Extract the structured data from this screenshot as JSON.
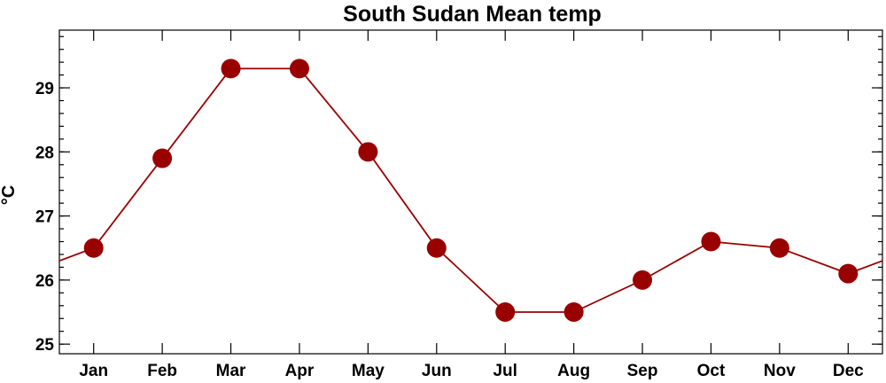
{
  "chart_data": {
    "type": "line",
    "title": "South Sudan Mean temp",
    "xlabel": "",
    "ylabel": "°C",
    "categories": [
      "Jan",
      "Feb",
      "Mar",
      "Apr",
      "May",
      "Jun",
      "Jul",
      "Aug",
      "Sep",
      "Oct",
      "Nov",
      "Dec"
    ],
    "values": [
      26.5,
      27.9,
      29.3,
      29.3,
      28.0,
      26.5,
      25.5,
      25.5,
      26.0,
      26.6,
      26.5,
      26.1
    ],
    "ylim": [
      24.85,
      29.9
    ],
    "yticks": [
      "25",
      "26",
      "27",
      "28",
      "29"
    ],
    "wraps_around": true,
    "grid": false,
    "legend": "none",
    "colors": {
      "marker": "#990000",
      "line": "#990000",
      "frame": "#000000"
    }
  }
}
